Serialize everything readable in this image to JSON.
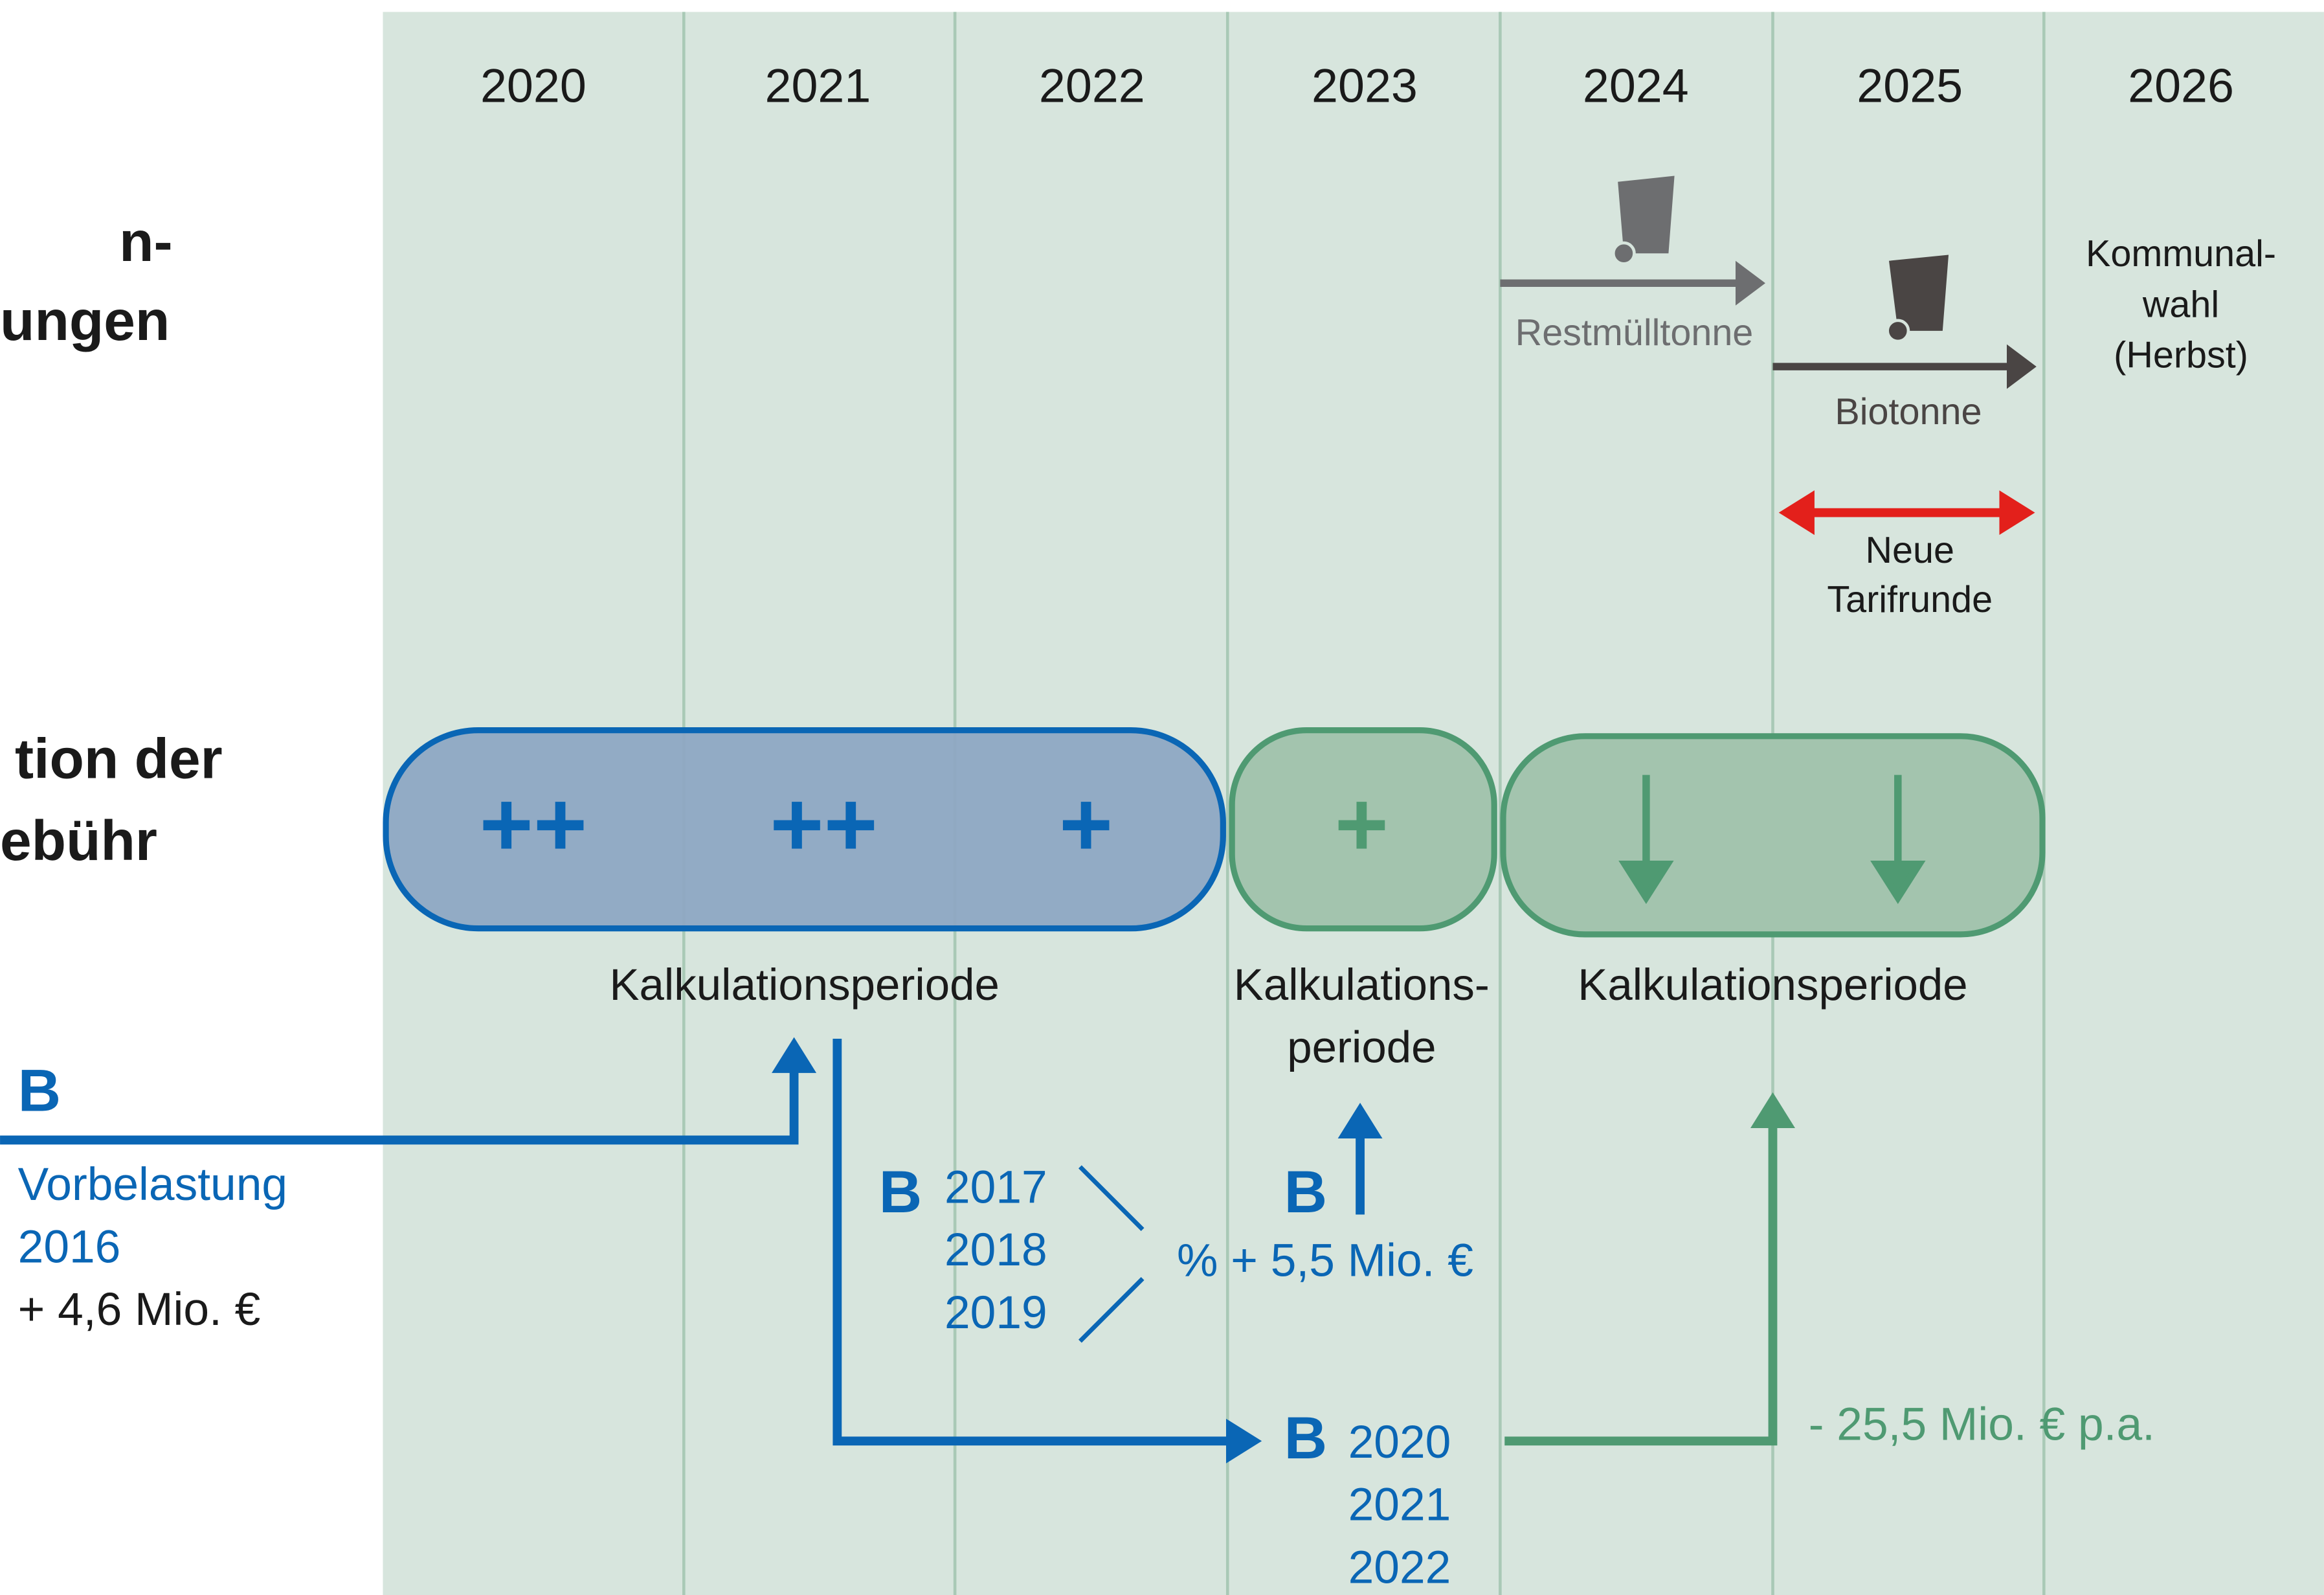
{
  "years": [
    "2020",
    "2021",
    "2022",
    "2023",
    "2024",
    "2025",
    "2026"
  ],
  "left_labels": {
    "top": [
      "n-",
      "ungen"
    ],
    "middle": [
      "tion der",
      "ebühr"
    ]
  },
  "events": {
    "restmuelltonne": "Restmülltonne",
    "biotonne": "Biotonne",
    "kommunalwahl": [
      "Kommunal-",
      "wahl",
      "(Herbst)"
    ],
    "tarifrunde": [
      "Neue",
      "Tarifrunde"
    ]
  },
  "periods": {
    "first": {
      "symbols": [
        "++",
        "++",
        "+"
      ],
      "label": "Kalkulationsperiode"
    },
    "second": {
      "symbols": [
        "+"
      ],
      "label": [
        "Kalkulations-",
        "periode"
      ]
    },
    "third": {
      "label": "Kalkulationsperiode"
    }
  },
  "flows": {
    "vorbelastung": {
      "letter": "B",
      "lines": [
        "Vorbelastung",
        "2016"
      ],
      "amount": "+ 4,6 Mio. €"
    },
    "middle": {
      "letter": "B",
      "years": [
        "2017",
        "2018",
        "2019"
      ],
      "amount": "% + 5,5 Mio. €",
      "letter_up": "B"
    },
    "bottom": {
      "letter": "B",
      "years": [
        "2020",
        "2021",
        "2022"
      ],
      "amount": "- 25,5 Mio. € p.a."
    }
  }
}
